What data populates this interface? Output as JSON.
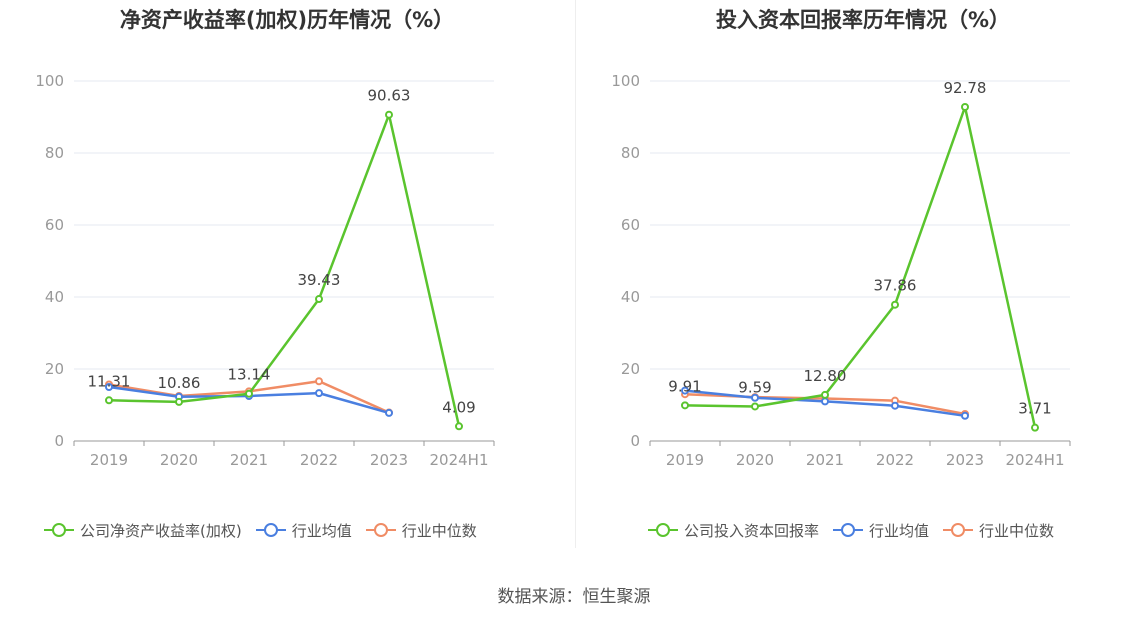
{
  "source_text": "数据来源：恒生聚源",
  "colors": {
    "company": "#5ac42e",
    "avg": "#4a7fe0",
    "median": "#f08c65",
    "grid": "#e6e9f0",
    "axis": "#999999"
  },
  "chart_data": [
    {
      "type": "line",
      "title": "净资产收益率(加权)历年情况（%）",
      "categories": [
        "2019",
        "2020",
        "2021",
        "2022",
        "2023",
        "2024H1"
      ],
      "ylim": [
        0,
        100
      ],
      "yticks": [
        "0",
        "20",
        "40",
        "60",
        "80",
        "100"
      ],
      "grid": true,
      "legend_position": "bottom",
      "series": [
        {
          "name": "公司净资产收益率(加权)",
          "color": "#5ac42e",
          "values": [
            11.31,
            10.86,
            13.14,
            39.43,
            90.63,
            4.09
          ],
          "labels": [
            "11.31",
            "10.86",
            "13.14",
            "39.43",
            "90.63",
            "4.09"
          ]
        },
        {
          "name": "行业均值",
          "color": "#4a7fe0",
          "values": [
            15.0,
            12.3,
            12.5,
            13.3,
            7.8,
            null
          ]
        },
        {
          "name": "行业中位数",
          "color": "#f08c65",
          "values": [
            15.7,
            12.5,
            13.8,
            16.6,
            7.9,
            null
          ]
        }
      ]
    },
    {
      "type": "line",
      "title": "投入资本回报率历年情况（%）",
      "categories": [
        "2019",
        "2020",
        "2021",
        "2022",
        "2023",
        "2024H1"
      ],
      "ylim": [
        0,
        100
      ],
      "yticks": [
        "0",
        "20",
        "40",
        "60",
        "80",
        "100"
      ],
      "grid": true,
      "legend_position": "bottom",
      "series": [
        {
          "name": "公司投入资本回报率",
          "color": "#5ac42e",
          "values": [
            9.91,
            9.59,
            12.8,
            37.86,
            92.78,
            3.71
          ],
          "labels": [
            "9.91",
            "9.59",
            "12.80",
            "37.86",
            "92.78",
            "3.71"
          ]
        },
        {
          "name": "行业均值",
          "color": "#4a7fe0",
          "values": [
            14.0,
            12.0,
            11.0,
            9.8,
            7.0,
            null
          ]
        },
        {
          "name": "行业中位数",
          "color": "#f08c65",
          "values": [
            13.0,
            12.2,
            11.8,
            11.2,
            7.5,
            null
          ]
        }
      ]
    }
  ]
}
